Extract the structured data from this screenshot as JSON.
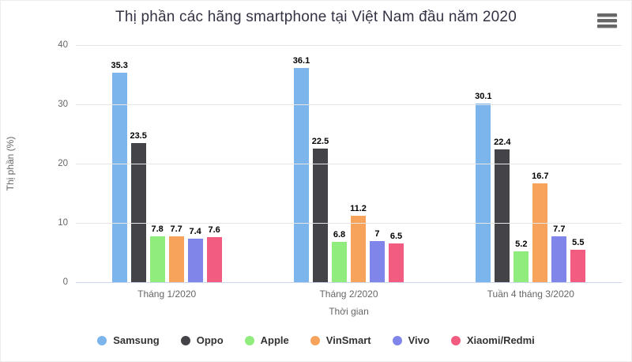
{
  "chart_data": {
    "type": "bar",
    "title": "Thị phần các hãng smartphone tại Việt Nam đầu năm 2020",
    "categories": [
      "Tháng 1/2020",
      "Tháng 2/2020",
      "Tuần 4 tháng 3/2020"
    ],
    "xlabel": "Thời gian",
    "ylabel": "Thị phần (%)",
    "ylim": [
      0,
      40
    ],
    "yticks": [
      0,
      10,
      20,
      30,
      40
    ],
    "grid": true,
    "legend_position": "bottom",
    "series": [
      {
        "name": "Samsung",
        "color": "#7cb5ec",
        "values": [
          35.3,
          36.1,
          30.1
        ]
      },
      {
        "name": "Oppo",
        "color": "#434348",
        "values": [
          23.5,
          22.5,
          22.4
        ]
      },
      {
        "name": "Apple",
        "color": "#90ed7d",
        "values": [
          7.8,
          6.8,
          5.2
        ]
      },
      {
        "name": "VinSmart",
        "color": "#f7a35c",
        "values": [
          7.7,
          11.2,
          16.7
        ]
      },
      {
        "name": "Vivo",
        "color": "#8085e9",
        "values": [
          7.4,
          7,
          7.7
        ]
      },
      {
        "name": "Xiaomi/Redmi",
        "color": "#f15c80",
        "values": [
          7.6,
          6.5,
          5.5
        ]
      }
    ]
  },
  "ui": {
    "menu_icon": "hamburger-menu-icon",
    "colors": {
      "title": "#333344",
      "axis_label": "#666666",
      "gridline": "#e6e6e6",
      "axis_line": "#ccd6eb",
      "legend_text": "#333333",
      "data_label": "#000000"
    }
  }
}
